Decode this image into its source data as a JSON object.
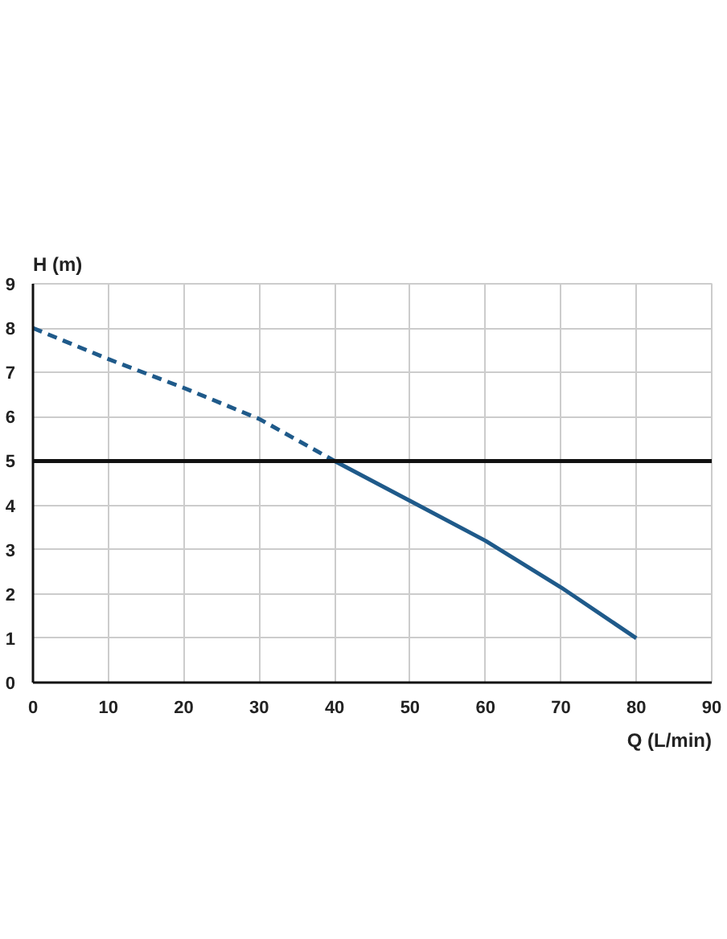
{
  "chart_data": {
    "type": "line",
    "xlabel": "Q (L/min)",
    "ylabel": "H (m)",
    "series": [
      {
        "color": "#1f5a8a",
        "line_style": "dashed",
        "x": [
          0,
          10,
          20,
          30,
          40
        ],
        "values": [
          8,
          7.3,
          6.65,
          5.95,
          5
        ]
      },
      {
        "color": "#1f5a8a",
        "line_style": "solid",
        "x": [
          40,
          50,
          60,
          70,
          80
        ],
        "values": [
          5,
          4.1,
          3.2,
          2.15,
          1
        ]
      }
    ],
    "xlim": [
      0,
      90
    ],
    "xticks": [
      0,
      10,
      20,
      30,
      40,
      50,
      60,
      70,
      80,
      90
    ],
    "ylim": [
      0,
      9
    ],
    "yticks": [
      0,
      1,
      2,
      3,
      4,
      5,
      6,
      7,
      8,
      9
    ],
    "ref_lines": [
      {
        "axis": "y",
        "value": 5,
        "color": "#111111",
        "line_style": "solid"
      }
    ],
    "grid": true,
    "marker": "none"
  }
}
